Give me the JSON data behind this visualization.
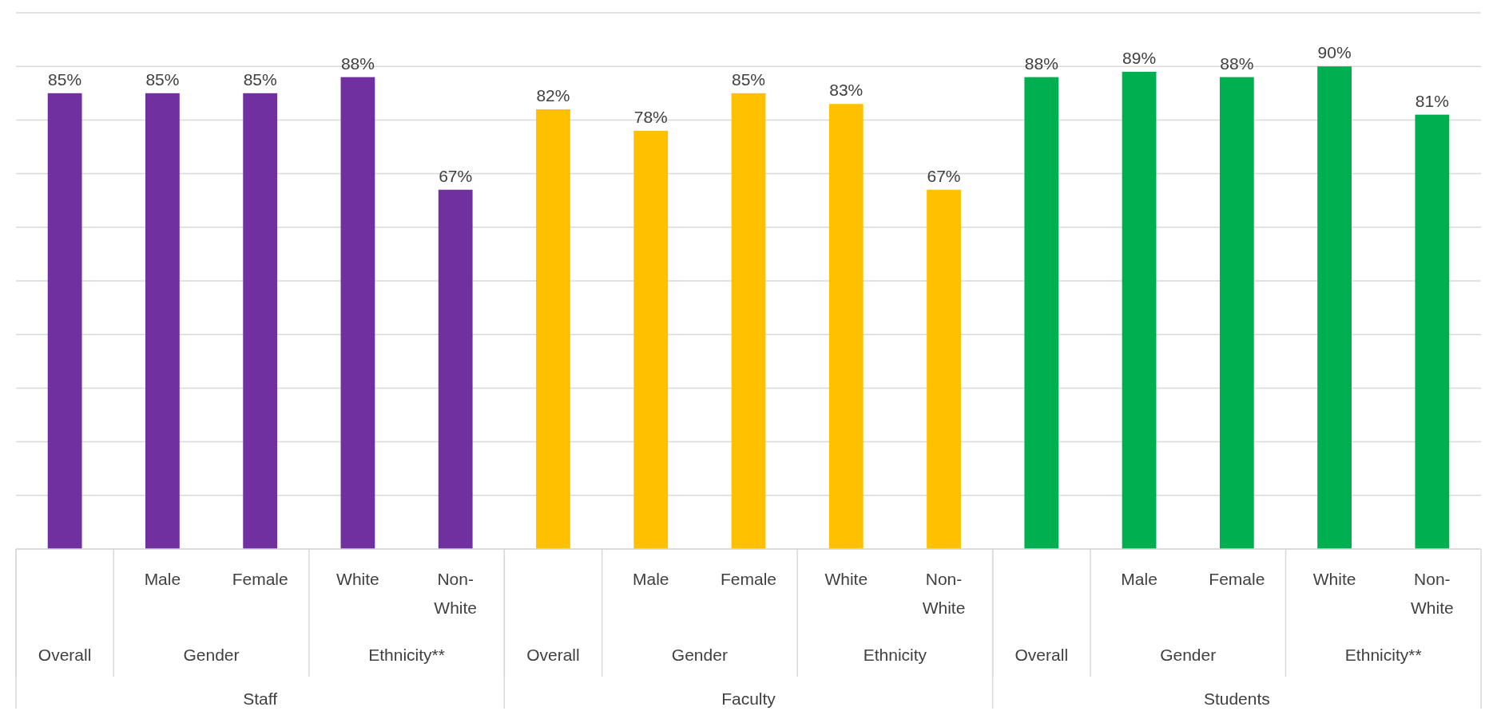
{
  "chart_data": {
    "type": "bar",
    "categories": [
      null,
      "Male",
      "Female",
      "White",
      "Non-White",
      null,
      "Male",
      "Female",
      "White",
      "Non-White",
      null,
      "Male",
      "Female",
      "White",
      "Non-White"
    ],
    "values": [
      85,
      85,
      85,
      88,
      67,
      82,
      78,
      85,
      83,
      67,
      88,
      89,
      88,
      90,
      81
    ],
    "value_labels": [
      "85%",
      "85%",
      "85%",
      "88%",
      "67%",
      "82%",
      "78%",
      "85%",
      "83%",
      "67%",
      "88%",
      "89%",
      "88%",
      "90%",
      "81%"
    ],
    "colors": [
      "#7030a0",
      "#7030a0",
      "#7030a0",
      "#7030a0",
      "#7030a0",
      "#ffc000",
      "#ffc000",
      "#ffc000",
      "#ffc000",
      "#ffc000",
      "#00b050",
      "#00b050",
      "#00b050",
      "#00b050",
      "#00b050"
    ],
    "annotations": [
      "Overall",
      "Gender",
      "Ethnicity**",
      "Overall",
      "Gender",
      "Ethnicity",
      "Overall",
      "Gender",
      "Ethnicity**",
      "Staff",
      "Faculty",
      "Students"
    ],
    "grid": "y",
    "tick_labels": "x"
  }
}
